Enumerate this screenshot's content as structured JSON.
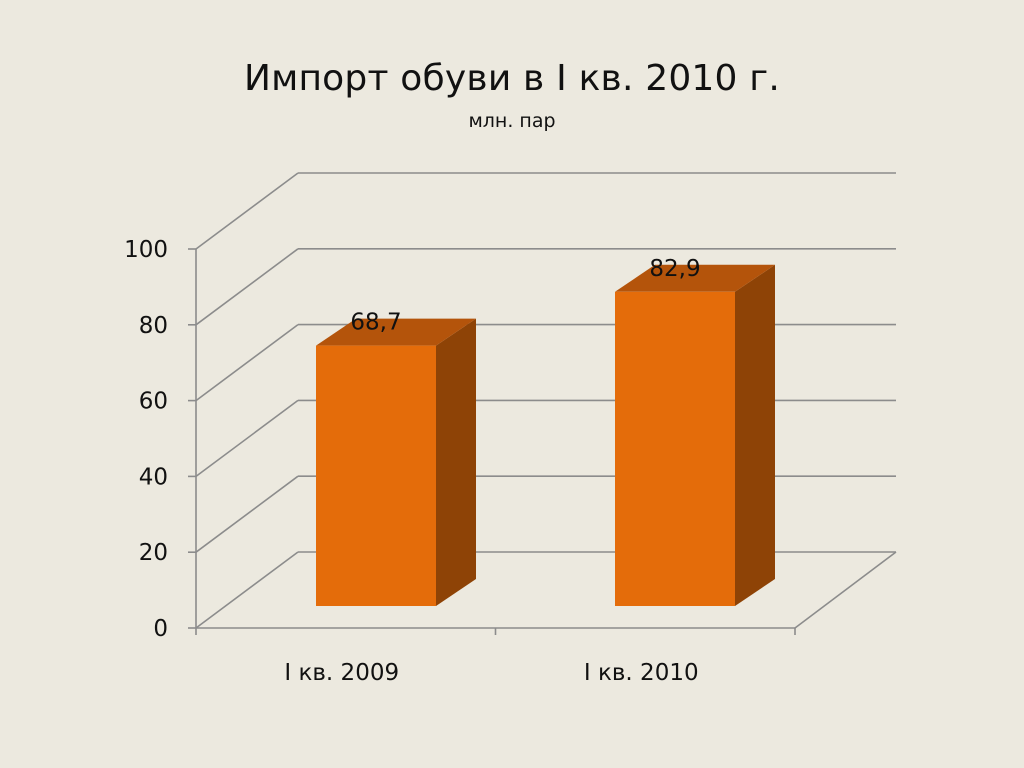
{
  "title": "Импорт обуви в I кв. 2010 г.",
  "subtitle": "млн. пар",
  "chart_data": {
    "type": "bar",
    "title": "Импорт обуви в I кв. 2010 г.",
    "subtitle": "млн. пар",
    "categories": [
      "I кв. 2009",
      "I кв. 2010"
    ],
    "values": [
      68.7,
      82.9
    ],
    "value_labels": [
      "68,7",
      "82,9"
    ],
    "ylim": [
      0,
      100
    ],
    "yticks": [
      0,
      20,
      40,
      60,
      80,
      100
    ],
    "xlabel": "",
    "ylabel": "",
    "grid": true,
    "three_d": true,
    "colors": {
      "bar_front": "#E46C0A",
      "bar_top": "#B4540B",
      "bar_side": "#8E4306",
      "grid": "#8C8C8C",
      "background": "#ECE9DF"
    }
  }
}
